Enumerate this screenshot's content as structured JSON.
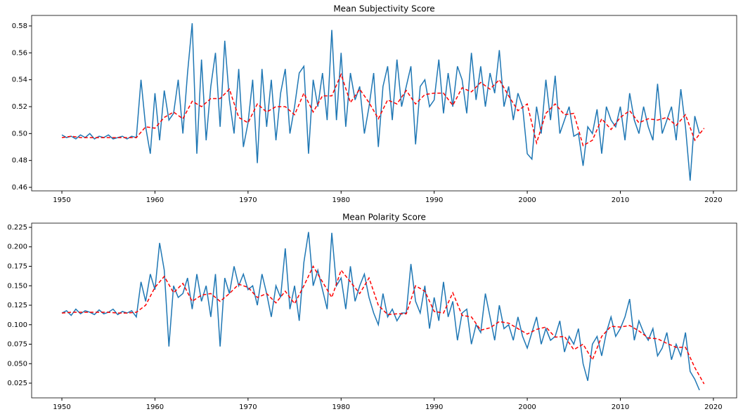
{
  "chart_data": [
    {
      "type": "line",
      "title": "Mean Subjectivity Score",
      "xlim": [
        1946.75,
        2022.5
      ],
      "xticks": [
        1950,
        1960,
        1970,
        1980,
        1990,
        2000,
        2010,
        2020
      ],
      "ylim": [
        0.4574,
        0.5878
      ],
      "yticks": [
        0.46,
        0.48,
        {
          "value": 0.5,
          "label": "0.50"
        },
        0.52,
        0.54,
        0.56,
        0.58
      ],
      "series": [
        {
          "color": "#1f77b4",
          "style": "solid",
          "x": [
            1950,
            1950.5,
            1951,
            1951.5,
            1952,
            1952.5,
            1953,
            1953.5,
            1954,
            1954.5,
            1955,
            1955.5,
            1956,
            1956.5,
            1957,
            1957.5,
            1958,
            1958.5,
            1959,
            1959.5,
            1960,
            1960.5,
            1961,
            1961.5,
            1962,
            1962.5,
            1963,
            1963.5,
            1964,
            1964.5,
            1965,
            1965.5,
            1966,
            1966.5,
            1967,
            1967.5,
            1968,
            1968.5,
            1969,
            1969.5,
            1970,
            1970.5,
            1971,
            1971.5,
            1972,
            1972.5,
            1973,
            1973.5,
            1974,
            1974.5,
            1975,
            1975.5,
            1976,
            1976.5,
            1977,
            1977.5,
            1978,
            1978.5,
            1979,
            1979.5,
            1980,
            1980.5,
            1981,
            1981.5,
            1982,
            1982.5,
            1983,
            1983.5,
            1984,
            1984.5,
            1985,
            1985.5,
            1986,
            1986.5,
            1987,
            1987.5,
            1988,
            1988.5,
            1989,
            1989.5,
            1990,
            1990.5,
            1991,
            1991.5,
            1992,
            1992.5,
            1993,
            1993.5,
            1994,
            1994.5,
            1995,
            1995.5,
            1996,
            1996.5,
            1997,
            1997.5,
            1998,
            1998.5,
            1999,
            1999.5,
            2000,
            2000.5,
            2001,
            2001.5,
            2002,
            2002.5,
            2003,
            2003.5,
            2004,
            2004.5,
            2005,
            2005.5,
            2006,
            2006.5,
            2007,
            2007.5,
            2008,
            2008.5,
            2009,
            2009.5,
            2010,
            2010.5,
            2011,
            2011.5,
            2012,
            2012.5,
            2013,
            2013.5,
            2014,
            2014.5,
            2015,
            2015.5,
            2016,
            2016.5,
            2017,
            2017.5,
            2018,
            2018.5
          ],
          "values": [
            0.499,
            0.497,
            0.498,
            0.496,
            0.499,
            0.497,
            0.5,
            0.496,
            0.498,
            0.497,
            0.499,
            0.496,
            0.497,
            0.498,
            0.496,
            0.498,
            0.497,
            0.54,
            0.505,
            0.485,
            0.53,
            0.495,
            0.532,
            0.51,
            0.515,
            0.54,
            0.5,
            0.545,
            0.582,
            0.485,
            0.555,
            0.495,
            0.535,
            0.56,
            0.505,
            0.569,
            0.525,
            0.5,
            0.548,
            0.49,
            0.508,
            0.54,
            0.478,
            0.548,
            0.505,
            0.54,
            0.495,
            0.53,
            0.548,
            0.5,
            0.52,
            0.545,
            0.55,
            0.485,
            0.54,
            0.52,
            0.545,
            0.51,
            0.577,
            0.51,
            0.56,
            0.505,
            0.545,
            0.525,
            0.535,
            0.5,
            0.52,
            0.545,
            0.49,
            0.535,
            0.55,
            0.51,
            0.555,
            0.52,
            0.535,
            0.55,
            0.492,
            0.535,
            0.54,
            0.52,
            0.525,
            0.555,
            0.515,
            0.545,
            0.52,
            0.55,
            0.54,
            0.515,
            0.56,
            0.525,
            0.55,
            0.52,
            0.545,
            0.53,
            0.562,
            0.52,
            0.535,
            0.51,
            0.53,
            0.52,
            0.485,
            0.481,
            0.52,
            0.5,
            0.54,
            0.51,
            0.543,
            0.5,
            0.51,
            0.52,
            0.498,
            0.5,
            0.476,
            0.505,
            0.5,
            0.518,
            0.485,
            0.52,
            0.51,
            0.505,
            0.52,
            0.495,
            0.53,
            0.51,
            0.5,
            0.52,
            0.505,
            0.495,
            0.537,
            0.5,
            0.51,
            0.52,
            0.495,
            0.533,
            0.505,
            0.465,
            0.513,
            0.5
          ]
        },
        {
          "color": "red",
          "style": "dashed",
          "x": [
            1950,
            1951,
            1952,
            1953,
            1954,
            1955,
            1956,
            1957,
            1958,
            1959,
            1960,
            1961,
            1962,
            1963,
            1964,
            1965,
            1966,
            1967,
            1968,
            1969,
            1970,
            1971,
            1972,
            1973,
            1974,
            1975,
            1976,
            1977,
            1978,
            1979,
            1980,
            1981,
            1982,
            1983,
            1984,
            1985,
            1986,
            1987,
            1988,
            1989,
            1990,
            1991,
            1992,
            1993,
            1994,
            1995,
            1996,
            1997,
            1998,
            1999,
            2000,
            2001,
            2002,
            2003,
            2004,
            2005,
            2006,
            2007,
            2008,
            2009,
            2010,
            2011,
            2012,
            2013,
            2014,
            2015,
            2016,
            2017,
            2018,
            2019
          ],
          "values": [
            0.497,
            0.498,
            0.497,
            0.497,
            0.497,
            0.497,
            0.497,
            0.497,
            0.497,
            0.505,
            0.504,
            0.512,
            0.516,
            0.511,
            0.524,
            0.52,
            0.526,
            0.526,
            0.533,
            0.512,
            0.508,
            0.522,
            0.516,
            0.52,
            0.52,
            0.514,
            0.53,
            0.516,
            0.528,
            0.528,
            0.544,
            0.523,
            0.533,
            0.523,
            0.511,
            0.525,
            0.522,
            0.532,
            0.522,
            0.529,
            0.53,
            0.53,
            0.521,
            0.534,
            0.531,
            0.538,
            0.533,
            0.54,
            0.528,
            0.517,
            0.522,
            0.493,
            0.515,
            0.522,
            0.514,
            0.515,
            0.491,
            0.495,
            0.511,
            0.503,
            0.512,
            0.517,
            0.508,
            0.511,
            0.51,
            0.512,
            0.506,
            0.514,
            0.495,
            0.504
          ]
        }
      ]
    },
    {
      "type": "line",
      "title": "Mean Polarity Score",
      "xlim": [
        1946.75,
        2022.5
      ],
      "xticks": [
        1950,
        1960,
        1970,
        1980,
        1990,
        2000,
        2010,
        2020
      ],
      "ylim": [
        0.0061,
        0.2304
      ],
      "yticks": [
        0.025,
        {
          "value": 0.05,
          "label": "0.050"
        },
        0.075,
        {
          "value": 0.1,
          "label": "0.100"
        },
        0.125,
        {
          "value": 0.15,
          "label": "0.150"
        },
        0.175,
        {
          "value": 0.2,
          "label": "0.200"
        },
        0.225
      ],
      "series": [
        {
          "color": "#1f77b4",
          "style": "solid",
          "x": [
            1950,
            1950.5,
            1951,
            1951.5,
            1952,
            1952.5,
            1953,
            1953.5,
            1954,
            1954.5,
            1955,
            1955.5,
            1956,
            1956.5,
            1957,
            1957.5,
            1958,
            1958.5,
            1959,
            1959.5,
            1960,
            1960.5,
            1961,
            1961.5,
            1962,
            1962.5,
            1963,
            1963.5,
            1964,
            1964.5,
            1965,
            1965.5,
            1966,
            1966.5,
            1967,
            1967.5,
            1968,
            1968.5,
            1969,
            1969.5,
            1970,
            1970.5,
            1971,
            1971.5,
            1972,
            1972.5,
            1973,
            1973.5,
            1974,
            1974.5,
            1975,
            1975.5,
            1976,
            1976.5,
            1977,
            1977.5,
            1978,
            1978.5,
            1979,
            1979.5,
            1980,
            1980.5,
            1981,
            1981.5,
            1982,
            1982.5,
            1983,
            1983.5,
            1984,
            1984.5,
            1985,
            1985.5,
            1986,
            1986.5,
            1987,
            1987.5,
            1988,
            1988.5,
            1989,
            1989.5,
            1990,
            1990.5,
            1991,
            1991.5,
            1992,
            1992.5,
            1993,
            1993.5,
            1994,
            1994.5,
            1995,
            1995.5,
            1996,
            1996.5,
            1997,
            1997.5,
            1998,
            1998.5,
            1999,
            1999.5,
            2000,
            2000.5,
            2001,
            2001.5,
            2002,
            2002.5,
            2003,
            2003.5,
            2004,
            2004.5,
            2005,
            2005.5,
            2006,
            2006.5,
            2007,
            2007.5,
            2008,
            2008.5,
            2009,
            2009.5,
            2010,
            2010.5,
            2011,
            2011.5,
            2012,
            2012.5,
            2013,
            2013.5,
            2014,
            2014.5,
            2015,
            2015.5,
            2016,
            2016.5,
            2017,
            2017.5,
            2018,
            2018.5
          ],
          "values": [
            0.115,
            0.118,
            0.112,
            0.12,
            0.114,
            0.118,
            0.116,
            0.113,
            0.119,
            0.114,
            0.116,
            0.12,
            0.113,
            0.117,
            0.115,
            0.118,
            0.11,
            0.155,
            0.13,
            0.165,
            0.145,
            0.205,
            0.17,
            0.072,
            0.15,
            0.135,
            0.14,
            0.16,
            0.12,
            0.165,
            0.13,
            0.15,
            0.11,
            0.165,
            0.072,
            0.16,
            0.14,
            0.175,
            0.15,
            0.165,
            0.145,
            0.15,
            0.125,
            0.165,
            0.14,
            0.11,
            0.15,
            0.135,
            0.198,
            0.12,
            0.15,
            0.105,
            0.18,
            0.219,
            0.15,
            0.17,
            0.145,
            0.12,
            0.218,
            0.15,
            0.16,
            0.12,
            0.175,
            0.13,
            0.15,
            0.165,
            0.135,
            0.115,
            0.1,
            0.14,
            0.11,
            0.12,
            0.105,
            0.115,
            0.115,
            0.178,
            0.13,
            0.115,
            0.15,
            0.095,
            0.135,
            0.105,
            0.155,
            0.11,
            0.13,
            0.08,
            0.115,
            0.12,
            0.075,
            0.1,
            0.09,
            0.14,
            0.11,
            0.08,
            0.125,
            0.095,
            0.1,
            0.08,
            0.11,
            0.085,
            0.07,
            0.09,
            0.11,
            0.075,
            0.095,
            0.08,
            0.085,
            0.105,
            0.065,
            0.085,
            0.075,
            0.095,
            0.05,
            0.028,
            0.075,
            0.085,
            0.06,
            0.09,
            0.11,
            0.085,
            0.095,
            0.11,
            0.133,
            0.08,
            0.105,
            0.09,
            0.08,
            0.095,
            0.06,
            0.07,
            0.09,
            0.055,
            0.075,
            0.06,
            0.09,
            0.04,
            0.03,
            0.016
          ]
        },
        {
          "color": "red",
          "style": "dashed",
          "x": [
            1950,
            1951,
            1952,
            1953,
            1954,
            1955,
            1956,
            1957,
            1958,
            1959,
            1960,
            1961,
            1962,
            1963,
            1964,
            1965,
            1966,
            1967,
            1968,
            1969,
            1970,
            1971,
            1972,
            1973,
            1974,
            1975,
            1976,
            1977,
            1978,
            1979,
            1980,
            1981,
            1982,
            1983,
            1984,
            1985,
            1986,
            1987,
            1988,
            1989,
            1990,
            1991,
            1992,
            1993,
            1994,
            1995,
            1996,
            1997,
            1998,
            1999,
            2000,
            2001,
            2002,
            2003,
            2004,
            2005,
            2006,
            2007,
            2008,
            2009,
            2010,
            2011,
            2012,
            2013,
            2014,
            2015,
            2016,
            2017,
            2018,
            2019
          ],
          "values": [
            0.115,
            0.116,
            0.116,
            0.116,
            0.116,
            0.116,
            0.115,
            0.115,
            0.116,
            0.125,
            0.148,
            0.162,
            0.141,
            0.153,
            0.13,
            0.138,
            0.14,
            0.13,
            0.14,
            0.152,
            0.148,
            0.135,
            0.14,
            0.128,
            0.143,
            0.127,
            0.15,
            0.175,
            0.155,
            0.135,
            0.17,
            0.155,
            0.14,
            0.16,
            0.125,
            0.113,
            0.114,
            0.114,
            0.15,
            0.143,
            0.117,
            0.115,
            0.141,
            0.112,
            0.11,
            0.093,
            0.096,
            0.104,
            0.102,
            0.095,
            0.088,
            0.094,
            0.097,
            0.084,
            0.085,
            0.068,
            0.075,
            0.055,
            0.085,
            0.098,
            0.097,
            0.099,
            0.092,
            0.083,
            0.082,
            0.076,
            0.071,
            0.071,
            0.045,
            0.024
          ]
        }
      ]
    }
  ]
}
